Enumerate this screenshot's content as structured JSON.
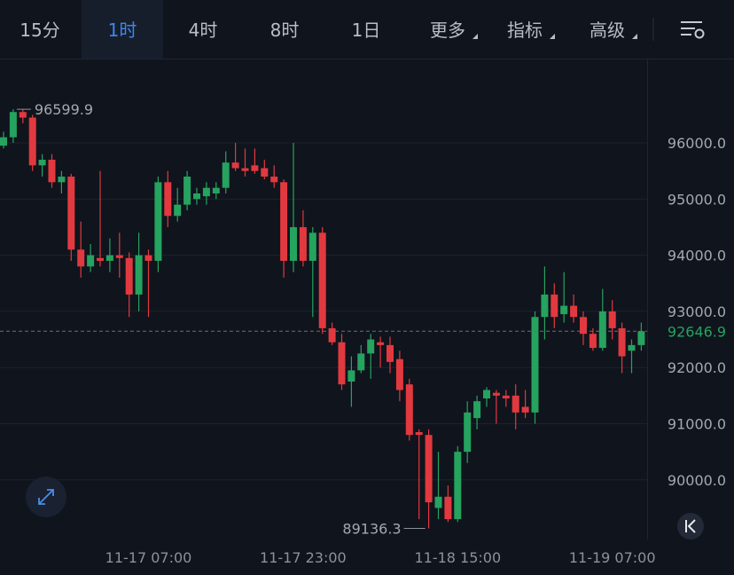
{
  "toolbar": {
    "tabs": [
      "15分",
      "1时",
      "4时",
      "8时",
      "1日",
      "更多",
      "指标",
      "高级"
    ],
    "active": 1
  },
  "chart_data": {
    "type": "candlestick",
    "categories": [
      null,
      null,
      null,
      null,
      null,
      null,
      null,
      null,
      null,
      null,
      null,
      null,
      null,
      null,
      null,
      "11-17 07:00",
      null,
      null,
      null,
      null,
      null,
      null,
      null,
      null,
      null,
      null,
      null,
      null,
      null,
      null,
      null,
      "11-17 23:00",
      null,
      null,
      null,
      null,
      null,
      null,
      null,
      null,
      null,
      null,
      null,
      null,
      null,
      null,
      null,
      "11-18 15:00",
      null,
      null,
      null,
      null,
      null,
      null,
      null,
      null,
      null,
      null,
      null,
      null,
      null,
      null,
      null,
      "11-19 07:00",
      null,
      null,
      null
    ],
    "open": [
      95950,
      96100,
      96550,
      96450,
      95600,
      95700,
      95300,
      95400,
      94100,
      93800,
      93950,
      93900,
      94000,
      93950,
      93300,
      94000,
      93900,
      95300,
      94700,
      94900,
      95000,
      95050,
      95100,
      95200,
      95650,
      95550,
      95600,
      95550,
      95400,
      95300,
      93900,
      94500,
      93900,
      94400,
      92700,
      92450,
      91750,
      91950,
      92250,
      92450,
      92400,
      92150,
      91700,
      90850,
      90800,
      89500,
      89700,
      89300,
      90500,
      91100,
      91450,
      91550,
      91500,
      91500,
      91300,
      91200,
      92900,
      93300,
      92950,
      93100,
      92900,
      92600,
      92350,
      93000,
      92700,
      92300,
      92400
    ],
    "high": [
      96200,
      96599.9,
      96599.9,
      96500,
      95800,
      95800,
      95500,
      95450,
      94600,
      94200,
      95500,
      94300,
      94400,
      94050,
      94400,
      94100,
      95400,
      95500,
      95200,
      95500,
      95200,
      95300,
      95300,
      95850,
      96000,
      95900,
      95900,
      95700,
      95600,
      95350,
      96000,
      94800,
      94500,
      94500,
      92800,
      92600,
      92200,
      92400,
      92600,
      92550,
      92550,
      92300,
      91800,
      90900,
      90900,
      90500,
      89900,
      90600,
      91400,
      91500,
      91650,
      91600,
      91600,
      91700,
      91600,
      93000,
      93800,
      93500,
      93700,
      93300,
      93000,
      92700,
      93400,
      93200,
      92800,
      92500,
      92800
    ],
    "low": [
      95900,
      96000,
      96350,
      95500,
      95400,
      95200,
      95100,
      93900,
      93600,
      93700,
      93800,
      93700,
      93600,
      92900,
      93000,
      92900,
      93700,
      94500,
      94600,
      94800,
      94900,
      94900,
      95000,
      95100,
      95500,
      95400,
      95450,
      95350,
      95200,
      93600,
      93700,
      93800,
      92900,
      92600,
      92400,
      91600,
      91300,
      91900,
      91800,
      92000,
      91900,
      91400,
      90700,
      89300,
      89136.3,
      89300,
      89250,
      89250,
      90300,
      90900,
      91300,
      91000,
      91300,
      90900,
      91100,
      91000,
      92500,
      92700,
      92800,
      92800,
      92400,
      92300,
      92300,
      92500,
      91900,
      91900,
      92300
    ],
    "close": [
      96100,
      96550,
      96450,
      95600,
      95700,
      95300,
      95400,
      94100,
      93800,
      94000,
      93900,
      94000,
      93950,
      93300,
      94000,
      93900,
      95300,
      94700,
      94900,
      95400,
      95100,
      95200,
      95200,
      95650,
      95550,
      95500,
      95500,
      95400,
      95300,
      93900,
      94500,
      93900,
      94400,
      92700,
      92450,
      91700,
      91950,
      92250,
      92500,
      92400,
      92100,
      91600,
      90800,
      90800,
      89600,
      89700,
      89300,
      90500,
      91200,
      91400,
      91600,
      91500,
      91450,
      91200,
      91200,
      92900,
      93300,
      92900,
      93100,
      92900,
      92600,
      92350,
      93000,
      92700,
      92200,
      92400,
      92646.9
    ],
    "up_color": "#25a35f",
    "down_color": "#e1393f",
    "ylim": [
      88938,
      97470
    ],
    "yticks": [
      {
        "value": 90000,
        "label": "90000.0"
      },
      {
        "value": 91000,
        "label": "91000.0"
      },
      {
        "value": 92000,
        "label": "92000.0"
      },
      {
        "value": 93000,
        "label": "93000.0"
      },
      {
        "value": 94000,
        "label": "94000.0"
      },
      {
        "value": 95000,
        "label": "95000.0"
      },
      {
        "value": 96000,
        "label": "96000.0"
      }
    ],
    "grid": true,
    "last_price": 92646.9,
    "high_label": 96599.9,
    "low_label": 89136.3
  }
}
